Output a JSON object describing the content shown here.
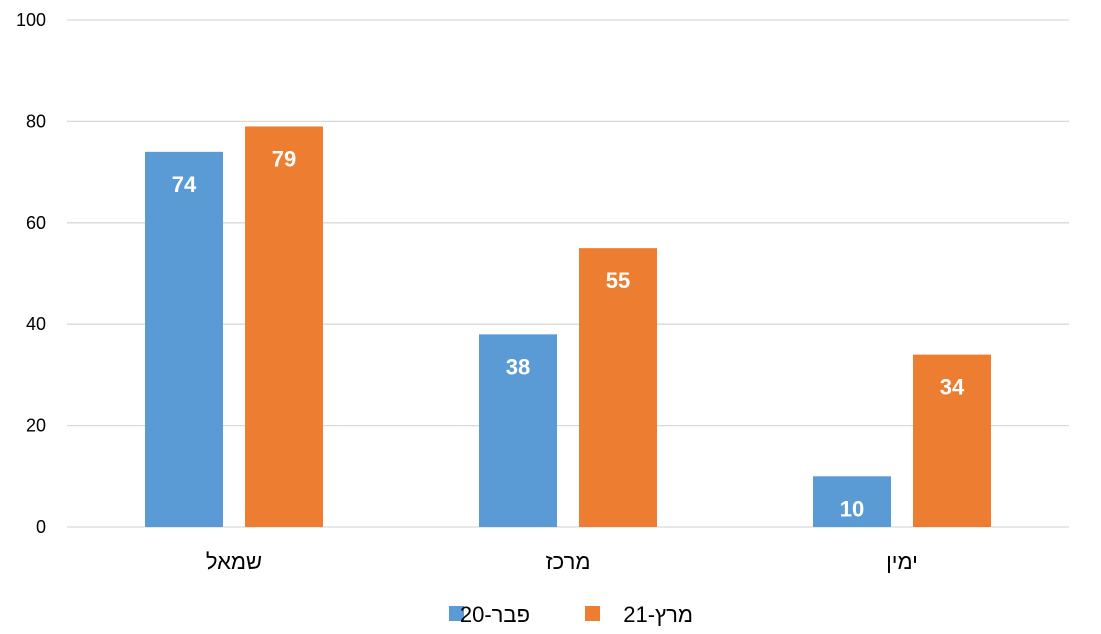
{
  "chart_data": {
    "type": "bar",
    "title": "",
    "xlabel": "",
    "ylabel": "",
    "categories": [
      "שמאל",
      "מרכז",
      "ימין"
    ],
    "series": [
      {
        "name": "פבר-20",
        "values": [
          74,
          38,
          10
        ],
        "color": "#5B9BD5"
      },
      {
        "name": "מרץ-21",
        "values": [
          79,
          55,
          34
        ],
        "color": "#ED7D31"
      }
    ],
    "ylim": [
      0,
      100
    ],
    "yticks": [
      0,
      20,
      40,
      60,
      80,
      100
    ],
    "grid": true,
    "gridColor": "#D9D9D9",
    "legend": "bottom",
    "data_labels": true
  }
}
